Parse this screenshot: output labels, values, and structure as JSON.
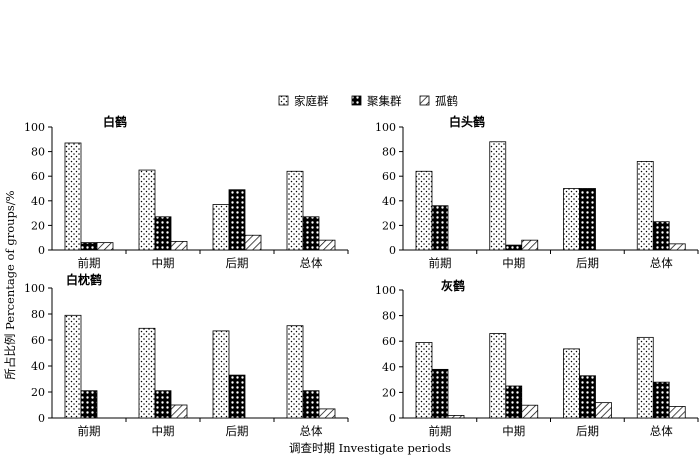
{
  "legend": [
    {
      "label": "家庭群",
      "pattern": "dots"
    },
    {
      "label": "聚集群",
      "pattern": "cross"
    },
    {
      "label": "孤鹤",
      "pattern": "hatch"
    }
  ],
  "ylabel": "所占比例 Percentage of groups/%",
  "xlabel": "调查时期  Investigate periods",
  "chart_data": [
    {
      "type": "bar",
      "title": "白鹤",
      "categories": [
        "前期",
        "中期",
        "后期",
        "总体"
      ],
      "ylim": [
        0,
        100
      ],
      "yticks": [
        0,
        20,
        40,
        60,
        80,
        100
      ],
      "series": [
        {
          "name": "家庭群",
          "values": [
            87,
            65,
            37,
            64
          ]
        },
        {
          "name": "聚集群",
          "values": [
            6,
            27,
            49,
            27
          ]
        },
        {
          "name": "孤鹤",
          "values": [
            6,
            7,
            12,
            8
          ]
        }
      ]
    },
    {
      "type": "bar",
      "title": "白头鹤",
      "categories": [
        "前期",
        "中期",
        "后期",
        "总体"
      ],
      "ylim": [
        0,
        100
      ],
      "yticks": [
        0,
        20,
        40,
        60,
        80,
        100
      ],
      "series": [
        {
          "name": "家庭群",
          "values": [
            64,
            88,
            50,
            72
          ]
        },
        {
          "name": "聚集群",
          "values": [
            36,
            4,
            50,
            23
          ]
        },
        {
          "name": "孤鹤",
          "values": [
            0,
            8,
            0,
            5
          ]
        }
      ]
    },
    {
      "type": "bar",
      "title": "白枕鹤",
      "categories": [
        "前期",
        "中期",
        "后期",
        "总体"
      ],
      "ylim": [
        0,
        100
      ],
      "yticks": [
        0,
        20,
        40,
        60,
        80,
        100
      ],
      "series": [
        {
          "name": "家庭群",
          "values": [
            79,
            69,
            67,
            71
          ]
        },
        {
          "name": "聚集群",
          "values": [
            21,
            21,
            33,
            21
          ]
        },
        {
          "name": "孤鹤",
          "values": [
            0,
            10,
            0,
            7
          ]
        }
      ]
    },
    {
      "type": "bar",
      "title": "灰鹤",
      "categories": [
        "前期",
        "中期",
        "后期",
        "总体"
      ],
      "ylim": [
        0,
        100
      ],
      "yticks": [
        0,
        20,
        40,
        60,
        80,
        100
      ],
      "series": [
        {
          "name": "家庭群",
          "values": [
            59,
            66,
            54,
            63
          ]
        },
        {
          "name": "聚集群",
          "values": [
            38,
            25,
            33,
            28
          ]
        },
        {
          "name": "孤鹤",
          "values": [
            2,
            10,
            12,
            9
          ]
        }
      ]
    }
  ]
}
